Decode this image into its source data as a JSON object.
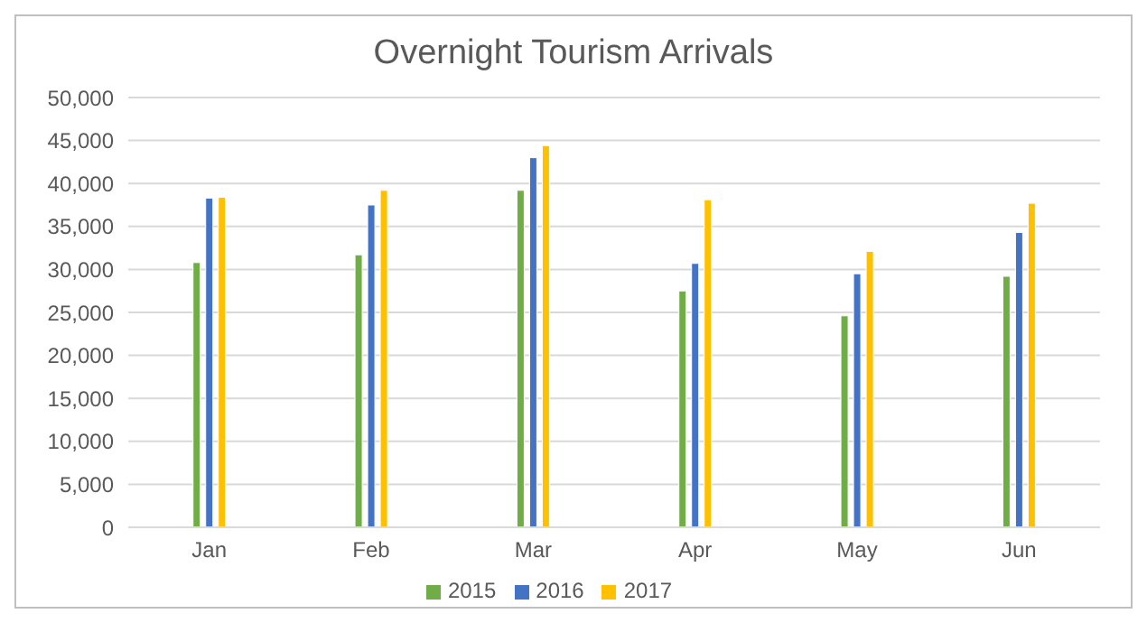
{
  "chart_data": {
    "type": "bar",
    "title": "Overnight Tourism Arrivals",
    "categories": [
      "Jan",
      "Feb",
      "Mar",
      "Apr",
      "May",
      "Jun"
    ],
    "series": [
      {
        "name": "2015",
        "color": "#70ad47",
        "values": [
          30800,
          31700,
          39200,
          27500,
          24600,
          29200
        ]
      },
      {
        "name": "2016",
        "color": "#4472c4",
        "values": [
          38300,
          37500,
          43000,
          30700,
          29500,
          34300
        ]
      },
      {
        "name": "2017",
        "color": "#ffc000",
        "values": [
          38400,
          39200,
          44400,
          38100,
          32100,
          37700
        ]
      }
    ],
    "ylim": [
      0,
      50000
    ],
    "yticks": [
      0,
      {
        "value": 5000,
        "label": "5,000"
      },
      {
        "value": 10000,
        "label": "10,000"
      },
      {
        "value": 15000,
        "label": "15,000"
      },
      {
        "value": 20000,
        "label": "20,000"
      },
      {
        "value": 25000,
        "label": "25,000"
      },
      {
        "value": 30000,
        "label": "30,000"
      },
      {
        "value": 35000,
        "label": "35,000"
      },
      {
        "value": 40000,
        "label": "40,000"
      },
      {
        "value": 45000,
        "label": "45,000"
      },
      {
        "value": 50000,
        "label": "50,000"
      }
    ],
    "grid": "y",
    "legend": "bottom"
  }
}
